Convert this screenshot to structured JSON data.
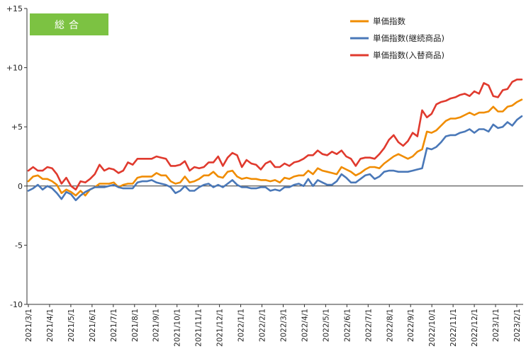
{
  "chart_data": {
    "type": "line",
    "title": "",
    "badge": "総合",
    "ylim": [
      -10,
      15
    ],
    "yticks": [
      {
        "value": 15,
        "label": "+15"
      },
      {
        "value": 10,
        "label": "+10"
      },
      {
        "value": 5,
        "label": "+5"
      },
      {
        "value": 0,
        "label": "0"
      },
      {
        "value": -5,
        "label": "-5"
      },
      {
        "value": -10,
        "label": "-10"
      }
    ],
    "xticks": [
      "2021/3/1",
      "2021/4/1",
      "2021/5/1",
      "2021/6/1",
      "2021/7/1",
      "2021/8/1",
      "2021/9/1",
      "2021/10/1",
      "2021/11/1",
      "2021/12/1",
      "2022/1/1",
      "2022/2/1",
      "2022/3/1",
      "2022/4/1",
      "2022/5/1",
      "2022/6/1",
      "2022/7/1",
      "2022/8/1",
      "2022/9/1",
      "2022/10/1",
      "2022/11/1",
      "2022/12/1",
      "2023/1/1",
      "2023/2/1"
    ],
    "x_unit": "week",
    "grid": false,
    "legend_position": "top-right",
    "series": [
      {
        "name": "単価指数",
        "color": "#f08c00",
        "values": [
          0.4,
          0.8,
          0.9,
          0.6,
          0.6,
          0.4,
          0.1,
          -0.6,
          -0.3,
          -0.5,
          -0.8,
          -0.4,
          -0.8,
          -0.3,
          -0.1,
          0.2,
          0.2,
          0.2,
          0.3,
          -0.1,
          0.1,
          0.2,
          0.2,
          0.7,
          0.8,
          0.8,
          0.8,
          1.1,
          0.9,
          0.9,
          0.4,
          0.2,
          0.3,
          0.8,
          0.3,
          0.4,
          0.6,
          0.9,
          0.9,
          1.2,
          0.8,
          0.7,
          1.2,
          1.3,
          0.8,
          0.6,
          0.7,
          0.6,
          0.6,
          0.5,
          0.5,
          0.4,
          0.5,
          0.3,
          0.7,
          0.6,
          0.8,
          0.9,
          0.9,
          1.3,
          1.0,
          1.5,
          1.3,
          1.2,
          1.1,
          1.0,
          1.6,
          1.4,
          1.2,
          0.9,
          1.1,
          1.4,
          1.6,
          1.6,
          1.5,
          1.9,
          2.2,
          2.5,
          2.7,
          2.5,
          2.3,
          2.5,
          2.9,
          3.1,
          4.6,
          4.5,
          4.7,
          5.1,
          5.5,
          5.7,
          5.7,
          5.8,
          6.0,
          6.2,
          6.0,
          6.2,
          6.2,
          6.3,
          6.7,
          6.3,
          6.3,
          6.7,
          6.8,
          7.1,
          7.3
        ]
      },
      {
        "name": "単価指数(継続商品)",
        "color": "#4a78b8",
        "values": [
          -0.4,
          -0.2,
          0.1,
          -0.3,
          0.0,
          -0.2,
          -0.6,
          -1.1,
          -0.5,
          -0.7,
          -1.2,
          -0.8,
          -0.5,
          -0.3,
          -0.1,
          -0.1,
          -0.1,
          0.0,
          0.1,
          -0.1,
          -0.2,
          -0.2,
          -0.2,
          0.3,
          0.4,
          0.4,
          0.5,
          0.3,
          0.2,
          0.1,
          -0.1,
          -0.6,
          -0.4,
          0.0,
          -0.4,
          -0.4,
          -0.1,
          0.1,
          0.2,
          -0.1,
          0.1,
          -0.1,
          0.2,
          0.5,
          0.1,
          -0.1,
          -0.1,
          -0.2,
          -0.2,
          -0.1,
          -0.1,
          -0.4,
          -0.3,
          -0.4,
          -0.1,
          -0.1,
          0.1,
          0.2,
          0.0,
          0.6,
          0.0,
          0.5,
          0.3,
          0.1,
          0.1,
          0.4,
          1.0,
          0.7,
          0.3,
          0.3,
          0.6,
          0.9,
          1.0,
          0.6,
          0.8,
          1.2,
          1.3,
          1.3,
          1.2,
          1.2,
          1.2,
          1.3,
          1.4,
          1.5,
          3.2,
          3.1,
          3.3,
          3.7,
          4.2,
          4.3,
          4.3,
          4.5,
          4.6,
          4.8,
          4.5,
          4.8,
          4.8,
          4.6,
          5.2,
          4.9,
          5.0,
          5.4,
          5.1,
          5.6,
          5.9
        ]
      },
      {
        "name": "単価指数(入替商品)",
        "color": "#e03a2e",
        "values": [
          1.3,
          1.6,
          1.3,
          1.3,
          1.6,
          1.5,
          1.0,
          0.2,
          0.7,
          0.0,
          -0.3,
          0.4,
          0.3,
          0.6,
          1.0,
          1.8,
          1.3,
          1.5,
          1.4,
          1.1,
          1.3,
          2.0,
          1.8,
          2.3,
          2.3,
          2.3,
          2.3,
          2.5,
          2.4,
          2.3,
          1.7,
          1.7,
          1.8,
          2.1,
          1.3,
          1.6,
          1.5,
          1.6,
          2.0,
          2.0,
          2.5,
          1.7,
          2.4,
          2.8,
          2.6,
          1.6,
          2.2,
          1.9,
          1.8,
          1.4,
          1.9,
          2.1,
          1.6,
          1.6,
          1.9,
          1.7,
          2.0,
          2.1,
          2.3,
          2.6,
          2.6,
          3.0,
          2.7,
          2.6,
          2.9,
          2.7,
          3.0,
          2.5,
          2.3,
          1.7,
          2.3,
          2.4,
          2.4,
          2.3,
          2.7,
          3.2,
          3.9,
          4.3,
          3.7,
          3.4,
          3.8,
          4.5,
          4.2,
          6.4,
          5.8,
          6.1,
          6.9,
          7.1,
          7.2,
          7.4,
          7.5,
          7.7,
          7.8,
          7.6,
          8.0,
          7.8,
          8.7,
          8.5,
          7.6,
          7.5,
          8.1,
          8.2,
          8.8,
          9.0,
          9.0
        ]
      }
    ]
  }
}
